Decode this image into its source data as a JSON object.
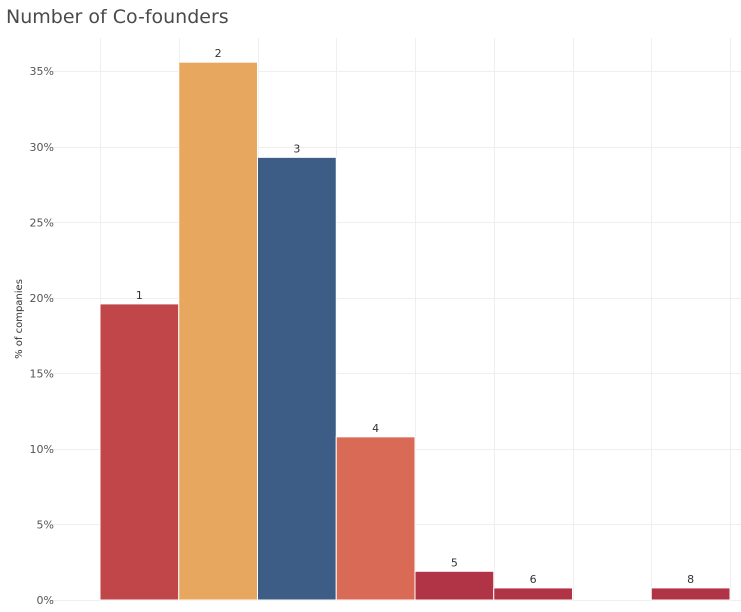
{
  "chart_data": {
    "type": "bar",
    "title": "Number of Co-founders",
    "xlabel": "",
    "ylabel": "% of companies",
    "categories": [
      "1",
      "2",
      "3",
      "4",
      "5",
      "6",
      "7",
      "8"
    ],
    "values": [
      19.6,
      35.6,
      29.3,
      10.8,
      1.9,
      0.8,
      null,
      0.8
    ],
    "bar_labels": [
      "1",
      "2",
      "3",
      "4",
      "5",
      "6",
      "",
      "8"
    ],
    "colors": [
      "#c0464a",
      "#e8a75e",
      "#3d5d87",
      "#d96a55",
      "#b03346",
      "#b03346",
      "",
      "#b03346"
    ],
    "ylim": [
      0,
      37.2
    ],
    "yticks": [
      0,
      5,
      10,
      15,
      20,
      25,
      30,
      35
    ],
    "ytick_labels": [
      "0%",
      "5%",
      "10%",
      "15%",
      "20%",
      "25%",
      "30%",
      "35%"
    ],
    "grid": true,
    "legend": "none"
  }
}
